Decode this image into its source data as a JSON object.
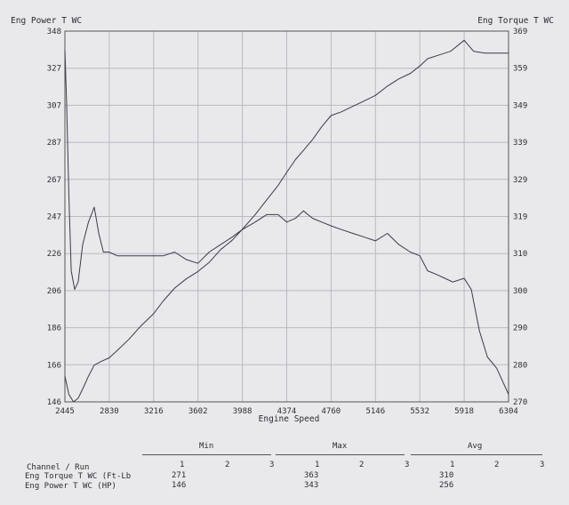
{
  "chart_data": {
    "type": "line",
    "y_left_label": "Eng Power T WC",
    "y_right_label": "Eng Torque T WC",
    "xlabel": "Engine Speed",
    "xlim": [
      2445,
      6304
    ],
    "y_left_lim": [
      146,
      348
    ],
    "y_right_lim": [
      270,
      369
    ],
    "x_ticks": [
      "2445",
      "2830",
      "3216",
      "3602",
      "3988",
      "4374",
      "4760",
      "5146",
      "5532",
      "5918",
      "6304"
    ],
    "y_left_ticks": [
      "146",
      "166",
      "186",
      "206",
      "226",
      "247",
      "267",
      "287",
      "307",
      "327",
      "348"
    ],
    "y_right_ticks": [
      "270",
      "280",
      "290",
      "300",
      "310",
      "319",
      "329",
      "339",
      "349",
      "359",
      "369"
    ],
    "grid": true,
    "series": [
      {
        "axis": "left",
        "color": "#3a3a4a",
        "x": [
          2445,
          2480,
          2520,
          2560,
          2600,
          2650,
          2700,
          2760,
          2830,
          2900,
          3000,
          3100,
          3216,
          3300,
          3400,
          3500,
          3602,
          3700,
          3800,
          3900,
          3988,
          4100,
          4200,
          4300,
          4374,
          4450,
          4520,
          4600,
          4680,
          4760,
          4850,
          4950,
          5050,
          5146,
          5250,
          5350,
          5450,
          5532,
          5600,
          5700,
          5800,
          5918,
          6000,
          6100,
          6200,
          6304
        ],
        "y": [
          160,
          150,
          146,
          148,
          153,
          160,
          166,
          168,
          170,
          174,
          180,
          187,
          194,
          201,
          208,
          213,
          217,
          222,
          229,
          234,
          240,
          248,
          256,
          264,
          271,
          278,
          283,
          289,
          296,
          302,
          304,
          307,
          310,
          313,
          318,
          322,
          325,
          329,
          333,
          335,
          337,
          343,
          337,
          336,
          336,
          336
        ]
      },
      {
        "axis": "right",
        "color": "#3a3a4a",
        "x": [
          2445,
          2460,
          2480,
          2500,
          2530,
          2560,
          2600,
          2650,
          2700,
          2740,
          2780,
          2830,
          2900,
          3000,
          3100,
          3216,
          3300,
          3400,
          3500,
          3602,
          3700,
          3800,
          3900,
          3988,
          4100,
          4200,
          4300,
          4374,
          4450,
          4520,
          4600,
          4680,
          4760,
          4850,
          4950,
          5050,
          5146,
          5250,
          5350,
          5450,
          5532,
          5600,
          5680,
          5750,
          5820,
          5918,
          5980,
          6050,
          6120,
          6200,
          6304
        ],
        "y": [
          364,
          350,
          325,
          305,
          300,
          302,
          312,
          318,
          322,
          315,
          310,
          310,
          309,
          309,
          309,
          309,
          309,
          310,
          308,
          307,
          310,
          312,
          314,
          316,
          318,
          320,
          320,
          318,
          319,
          321,
          319,
          318,
          317,
          316,
          315,
          314,
          313,
          315,
          312,
          310,
          309,
          305,
          304,
          303,
          302,
          303,
          300,
          289,
          282,
          279,
          272
        ]
      }
    ]
  },
  "summary": {
    "headers": [
      "Min",
      "Max",
      "Avg"
    ],
    "run_numbers": [
      "1",
      "2",
      "3"
    ],
    "row_label_header": "Channel / Run",
    "rows": [
      {
        "name": "Eng Torque T WC (Ft-Lb",
        "min": "271",
        "max": "363",
        "avg": "310"
      },
      {
        "name": "Eng Power T WC (HP)",
        "min": "146",
        "max": "343",
        "avg": "256"
      }
    ]
  }
}
